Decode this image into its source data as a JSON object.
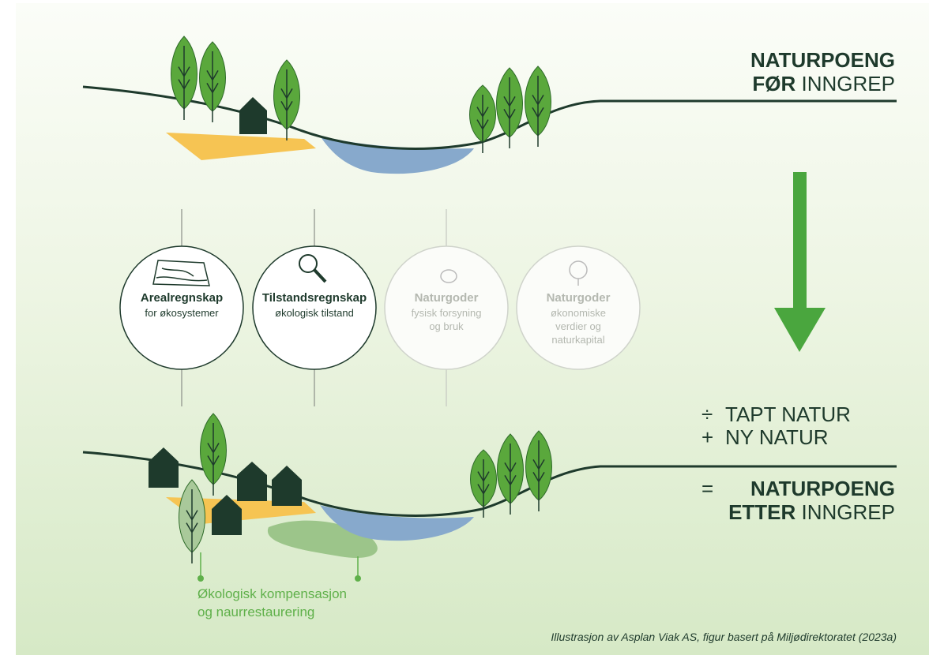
{
  "header": {
    "line1": "NATURPOENG",
    "line2_bold": "FØR",
    "line2_rest": "INNGREP"
  },
  "circles": [
    {
      "title": "Arealregnskap",
      "lines": [
        "for økosystemer"
      ]
    },
    {
      "title": "Tilstandsregnskap",
      "lines": [
        "økologisk tilstand"
      ]
    },
    {
      "title": "Naturgoder",
      "lines": [
        "fysisk forsyning",
        "og bruk"
      ]
    },
    {
      "title": "Naturgoder",
      "lines": [
        "økonomiske",
        "verdier og",
        "naturkapital"
      ]
    }
  ],
  "equation": {
    "minus_symbol": "÷",
    "minus": "TAPT NATUR",
    "plus_symbol": "+",
    "plus": "NY NATUR",
    "equals_symbol": "=",
    "result_line1": "NATURPOENG",
    "result_bold": "ETTER",
    "result_rest": "INNGREP"
  },
  "annotation": {
    "lines": [
      "Økologisk kompensasjon",
      "og naurrestaurering"
    ]
  },
  "caption": "Illustrasjon av Asplan Viak AS, figur basert på Miljødirektoratet  (2023a)"
}
